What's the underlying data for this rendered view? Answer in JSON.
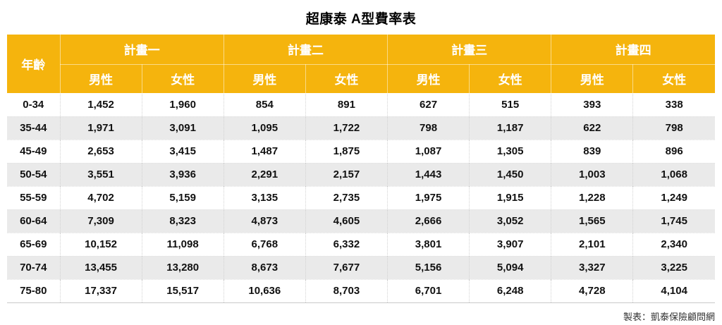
{
  "title": "超康泰 A型費率表",
  "footer_credit": "製表：凱泰保險顧問網",
  "colors": {
    "header_bg": "#F5B40D",
    "header_text": "#FFFFFF",
    "stripe_bg": "#EAEAEA",
    "text": "#111111"
  },
  "chart_data": {
    "type": "table",
    "title": "超康泰 A型費率表",
    "age_column_header": "年齡",
    "plan_headers": [
      "計畫一",
      "計畫二",
      "計畫三",
      "計畫四"
    ],
    "gender_headers": [
      "男性",
      "女性"
    ],
    "column_structure": "Each plan has two sub-columns: 男性 (male) and 女性 (female) premium rates",
    "rows": [
      {
        "age": "0-34",
        "rates": [
          "1,452",
          "1,960",
          "854",
          "891",
          "627",
          "515",
          "393",
          "338"
        ]
      },
      {
        "age": "35-44",
        "rates": [
          "1,971",
          "3,091",
          "1,095",
          "1,722",
          "798",
          "1,187",
          "622",
          "798"
        ]
      },
      {
        "age": "45-49",
        "rates": [
          "2,653",
          "3,415",
          "1,487",
          "1,875",
          "1,087",
          "1,305",
          "839",
          "896"
        ]
      },
      {
        "age": "50-54",
        "rates": [
          "3,551",
          "3,936",
          "2,291",
          "2,157",
          "1,443",
          "1,450",
          "1,003",
          "1,068"
        ]
      },
      {
        "age": "55-59",
        "rates": [
          "4,702",
          "5,159",
          "3,135",
          "2,735",
          "1,975",
          "1,915",
          "1,228",
          "1,249"
        ]
      },
      {
        "age": "60-64",
        "rates": [
          "7,309",
          "8,323",
          "4,873",
          "4,605",
          "2,666",
          "3,052",
          "1,565",
          "1,745"
        ]
      },
      {
        "age": "65-69",
        "rates": [
          "10,152",
          "11,098",
          "6,768",
          "6,332",
          "3,801",
          "3,907",
          "2,101",
          "2,340"
        ]
      },
      {
        "age": "70-74",
        "rates": [
          "13,455",
          "13,280",
          "8,673",
          "7,677",
          "5,156",
          "5,094",
          "3,327",
          "3,225"
        ]
      },
      {
        "age": "75-80",
        "rates": [
          "17,337",
          "15,517",
          "10,636",
          "8,703",
          "6,701",
          "6,248",
          "4,728",
          "4,104"
        ]
      }
    ]
  }
}
